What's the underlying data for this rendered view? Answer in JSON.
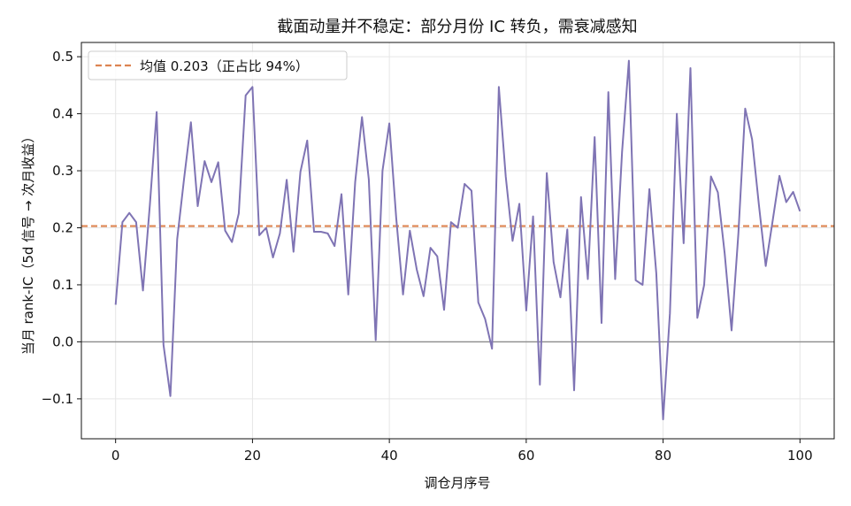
{
  "chart_data": {
    "type": "line",
    "title": "截面动量并不稳定：部分月份 IC 转负，需衰减感知",
    "xlabel": "调仓月序号",
    "ylabel": "当月 rank-IC（5d 信号 → 次月收益）",
    "xlim": [
      -5,
      105
    ],
    "ylim": [
      -0.17,
      0.525
    ],
    "xticks": [
      0,
      20,
      40,
      60,
      80,
      100
    ],
    "yticks": [
      -0.1,
      0.0,
      0.1,
      0.2,
      0.3,
      0.4,
      0.5
    ],
    "ytick_labels": [
      "−0.1",
      "0.0",
      "0.1",
      "0.2",
      "0.3",
      "0.4",
      "0.5"
    ],
    "grid": true,
    "legend_position": "top-left",
    "series": [
      {
        "name": "",
        "color": "#7f74b4",
        "x": [
          0,
          1,
          2,
          3,
          4,
          5,
          6,
          7,
          8,
          9,
          10,
          11,
          12,
          13,
          14,
          15,
          16,
          17,
          18,
          19,
          20,
          21,
          22,
          23,
          24,
          25,
          26,
          27,
          28,
          29,
          30,
          31,
          32,
          33,
          34,
          35,
          36,
          37,
          38,
          39,
          40,
          41,
          42,
          43,
          44,
          45,
          46,
          47,
          48,
          49,
          50,
          51,
          52,
          53,
          54,
          55,
          56,
          57,
          58,
          59,
          60,
          61,
          62,
          63,
          64,
          65,
          66,
          67,
          68,
          69,
          70,
          71,
          72,
          73,
          74,
          75,
          76,
          77,
          78,
          79,
          80,
          81,
          82,
          83,
          84,
          85,
          86,
          87,
          88,
          89,
          90,
          91,
          92,
          93,
          94,
          95,
          96,
          97,
          98,
          99,
          100
        ],
        "values": [
          0.065,
          0.21,
          0.226,
          0.21,
          0.09,
          0.24,
          0.403,
          -0.005,
          -0.095,
          0.18,
          0.285,
          0.385,
          0.238,
          0.317,
          0.28,
          0.315,
          0.195,
          0.175,
          0.225,
          0.432,
          0.447,
          0.187,
          0.2,
          0.148,
          0.19,
          0.284,
          0.158,
          0.298,
          0.353,
          0.193,
          0.193,
          0.19,
          0.168,
          0.259,
          0.083,
          0.28,
          0.394,
          0.285,
          0.003,
          0.3,
          0.383,
          0.217,
          0.083,
          0.195,
          0.127,
          0.08,
          0.165,
          0.15,
          0.056,
          0.21,
          0.2,
          0.277,
          0.265,
          0.069,
          0.04,
          -0.012,
          0.447,
          0.29,
          0.177,
          0.242,
          0.055,
          0.22,
          -0.075,
          0.296,
          0.14,
          0.078,
          0.197,
          -0.085,
          0.254,
          0.11,
          0.359,
          0.033,
          0.438,
          0.11,
          0.333,
          0.493,
          0.108,
          0.1,
          0.268,
          0.12,
          -0.136,
          0.05,
          0.4,
          0.173,
          0.48,
          0.042,
          0.1,
          0.29,
          0.262,
          0.155,
          0.02,
          0.19,
          0.409,
          0.355,
          0.24,
          0.133,
          0.212,
          0.291,
          0.245,
          0.263,
          0.229
        ]
      }
    ],
    "hlines": [
      {
        "y": 0.0,
        "color": "#8c8c8c",
        "style": "solid"
      },
      {
        "y": 0.203,
        "color": "#dd8452",
        "style": "dashed"
      }
    ],
    "legend": [
      {
        "label": "均值 0.203（正占比 94%）",
        "color": "#dd8452",
        "style": "dashed"
      }
    ]
  }
}
